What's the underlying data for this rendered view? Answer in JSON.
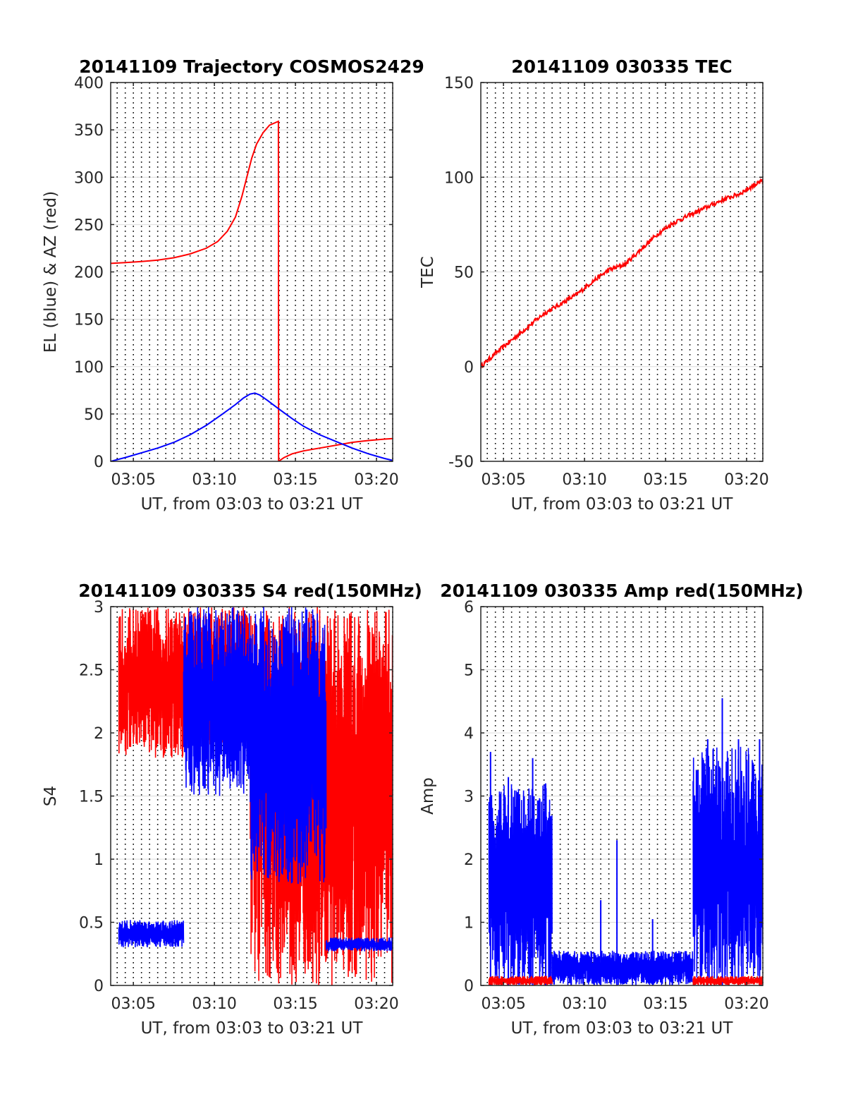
{
  "colors": {
    "red": "#ff0000",
    "blue": "#0000ff",
    "axis": "#262626",
    "grid": "#dcdcdc"
  },
  "chart_data": [
    {
      "type": "line",
      "title": "20141109 Trajectory COSMOS2429",
      "xlabel": "UT, from 03:03 to 03:21 UT",
      "ylabel": "EL (blue) & AZ (red)",
      "xlim_minutes": [
        3.6,
        21.0
      ],
      "x_tick_minutes": [
        5,
        10,
        15,
        20
      ],
      "x_tick_labels": [
        "03:05",
        "03:10",
        "03:15",
        "03:20"
      ],
      "ylim": [
        0,
        400
      ],
      "y_ticks": [
        0,
        50,
        100,
        150,
        200,
        250,
        300,
        350,
        400
      ],
      "y_tick_labels": [
        "0",
        "50",
        "100",
        "150",
        "200",
        "250",
        "300",
        "350",
        "400"
      ],
      "grid": "dotted vertical every 0.5 min; light horizontal at y ticks",
      "series": [
        {
          "color": "red",
          "points": [
            [
              3.6,
              209
            ],
            [
              4.5,
              209.8
            ],
            [
              5.5,
              211
            ],
            [
              6.5,
              212.5
            ],
            [
              7.5,
              215
            ],
            [
              8.5,
              219
            ],
            [
              9.5,
              225
            ],
            [
              10.2,
              232
            ],
            [
              10.8,
              243
            ],
            [
              11.3,
              258
            ],
            [
              11.7,
              280
            ],
            [
              12.0,
              300
            ],
            [
              12.3,
              320
            ],
            [
              12.6,
              335
            ],
            [
              13.0,
              347
            ],
            [
              13.4,
              355
            ],
            [
              13.95,
              359
            ],
            [
              13.96,
              0
            ],
            [
              14.3,
              4
            ],
            [
              14.8,
              8
            ],
            [
              15.5,
              11
            ],
            [
              16.5,
              14
            ],
            [
              17.5,
              17
            ],
            [
              18.5,
              20
            ],
            [
              19.5,
              22
            ],
            [
              20.5,
              23.5
            ],
            [
              21.0,
              24
            ]
          ]
        },
        {
          "color": "blue",
          "points": [
            [
              3.6,
              0
            ],
            [
              4.5,
              4
            ],
            [
              5.5,
              9
            ],
            [
              6.5,
              14
            ],
            [
              7.5,
              20
            ],
            [
              8.5,
              28
            ],
            [
              9.5,
              38
            ],
            [
              10.5,
              50
            ],
            [
              11.3,
              60
            ],
            [
              11.8,
              67
            ],
            [
              12.2,
              71
            ],
            [
              12.5,
              72
            ],
            [
              12.8,
              70
            ],
            [
              13.3,
              64
            ],
            [
              14.0,
              55
            ],
            [
              14.8,
              45
            ],
            [
              15.5,
              37
            ],
            [
              16.5,
              28
            ],
            [
              17.5,
              21
            ],
            [
              18.5,
              14
            ],
            [
              19.5,
              8
            ],
            [
              20.5,
              3
            ],
            [
              21.0,
              1
            ]
          ]
        }
      ]
    },
    {
      "type": "line",
      "title": "20141109 030335 TEC",
      "xlabel": "UT, from 03:03 to 03:21 UT",
      "ylabel": "TEC",
      "xlim_minutes": [
        3.6,
        21.0
      ],
      "x_tick_minutes": [
        5,
        10,
        15,
        20
      ],
      "x_tick_labels": [
        "03:05",
        "03:10",
        "03:15",
        "03:20"
      ],
      "ylim": [
        -50,
        150
      ],
      "y_ticks": [
        -50,
        0,
        50,
        100,
        150
      ],
      "y_tick_labels": [
        "-50",
        "0",
        "50",
        "100",
        "150"
      ],
      "grid": "dotted vertical every 0.5 min; light horizontal at y ticks",
      "series": [
        {
          "color": "red",
          "points": [
            [
              3.6,
              0
            ],
            [
              4.5,
              7
            ],
            [
              5.5,
              14
            ],
            [
              6.5,
              21
            ],
            [
              7.5,
              28
            ],
            [
              8.5,
              33
            ],
            [
              9.5,
              38
            ],
            [
              10.5,
              45
            ],
            [
              11.5,
              51
            ],
            [
              12.5,
              54
            ],
            [
              13.5,
              62
            ],
            [
              14.5,
              70
            ],
            [
              15.5,
              76
            ],
            [
              16.5,
              80
            ],
            [
              17.5,
              84
            ],
            [
              18.5,
              88
            ],
            [
              19.5,
              91
            ],
            [
              20.5,
              96
            ],
            [
              21.0,
              98
            ]
          ]
        }
      ]
    },
    {
      "type": "line",
      "title": "20141109 030335 S4 red(150MHz)",
      "xlabel": "UT, from 03:03 to 03:21 UT",
      "ylabel": "S4",
      "xlim_minutes": [
        3.6,
        21.0
      ],
      "x_tick_minutes": [
        5,
        10,
        15,
        20
      ],
      "x_tick_labels": [
        "03:05",
        "03:10",
        "03:15",
        "03:20"
      ],
      "ylim": [
        0,
        3
      ],
      "y_ticks": [
        0,
        0.5,
        1,
        1.5,
        2,
        2.5,
        3
      ],
      "y_tick_labels": [
        "0",
        "0.5",
        "1",
        "1.5",
        "2",
        "2.5",
        "3"
      ],
      "grid": "dotted vertical every 0.5 min; light horizontal at y ticks",
      "series": [
        {
          "color": "red",
          "segments": [
            {
              "x": [
                4.1,
                8.2
              ],
              "min": 1.8,
              "max": 3.0
            },
            {
              "x": [
                8.2,
                12.2
              ],
              "min": 1.9,
              "max": 3.0
            },
            {
              "x": [
                12.2,
                21.0
              ],
              "min": 0,
              "max": 3.0
            }
          ]
        },
        {
          "color": "blue",
          "segments": [
            {
              "x": [
                4.1,
                8.1
              ],
              "min": 0.3,
              "max": 0.52
            },
            {
              "x": [
                8.1,
                12.2
              ],
              "min": 1.5,
              "max": 3.0
            },
            {
              "x": [
                12.2,
                16.9
              ],
              "min": 0.8,
              "max": 3.0
            },
            {
              "x": [
                16.9,
                21.0
              ],
              "min": 0.27,
              "max": 0.38
            }
          ]
        }
      ]
    },
    {
      "type": "line",
      "title": "20141109 030335 Amp red(150MHz)",
      "xlabel": "UT, from 03:03 to 03:21 UT",
      "ylabel": "Amp",
      "xlim_minutes": [
        3.6,
        21.0
      ],
      "x_tick_minutes": [
        5,
        10,
        15,
        20
      ],
      "x_tick_labels": [
        "03:05",
        "03:10",
        "03:15",
        "03:20"
      ],
      "ylim": [
        0,
        6
      ],
      "y_ticks": [
        0,
        1,
        2,
        3,
        4,
        5,
        6
      ],
      "y_tick_labels": [
        "0",
        "1",
        "2",
        "3",
        "4",
        "5",
        "6"
      ],
      "grid": "dotted vertical every 0.5 min; light horizontal at y ticks",
      "series": [
        {
          "color": "blue",
          "segments": [
            {
              "x": [
                4.1,
                8.0
              ],
              "min": 0,
              "max": 3.2
            },
            {
              "x": [
                8.0,
                16.7
              ],
              "min": 0,
              "max": 0.55
            },
            {
              "x": [
                16.7,
                21.0
              ],
              "min": 0,
              "max": 3.8
            }
          ],
          "peaks": [
            [
              4.2,
              3.7
            ],
            [
              5.3,
              3.3
            ],
            [
              6.8,
              3.6
            ],
            [
              7.6,
              3.2
            ],
            [
              11.0,
              1.35
            ],
            [
              12.0,
              2.3
            ],
            [
              14.2,
              1.05
            ],
            [
              17.6,
              3.9
            ],
            [
              18.5,
              4.55
            ],
            [
              19.5,
              3.9
            ],
            [
              20.8,
              3.9
            ]
          ]
        },
        {
          "color": "red",
          "segments": [
            {
              "x": [
                4.1,
                8.0
              ],
              "min": 0,
              "max": 0.15
            },
            {
              "x": [
                16.7,
                21.0
              ],
              "min": 0,
              "max": 0.15
            }
          ]
        }
      ]
    }
  ]
}
